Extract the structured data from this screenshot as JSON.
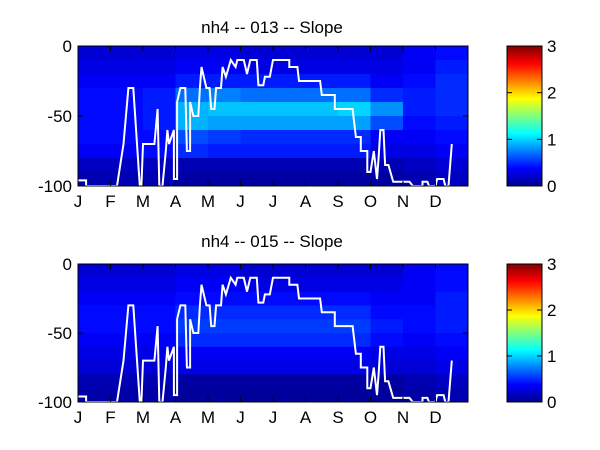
{
  "chart_data": [
    {
      "type": "heatmap",
      "title": "nh4 -- 013 -- Slope",
      "x_tick_labels": [
        "J",
        "F",
        "M",
        "A",
        "M",
        "J",
        "J",
        "A",
        "S",
        "O",
        "N",
        "D"
      ],
      "y_ticks": [
        0,
        -50,
        -100
      ],
      "ylim": [
        -100,
        0
      ],
      "colorbar": {
        "ticks": [
          0,
          1,
          2,
          3
        ],
        "range": [
          0,
          3
        ],
        "colormap": "jet"
      },
      "months": [
        1,
        2,
        3,
        4,
        5,
        6,
        7,
        8,
        9,
        10,
        11,
        12
      ],
      "depth_bands": [
        {
          "top": 0,
          "bottom": -10
        },
        {
          "top": -10,
          "bottom": -20
        },
        {
          "top": -20,
          "bottom": -30
        },
        {
          "top": -30,
          "bottom": -40
        },
        {
          "top": -40,
          "bottom": -50
        },
        {
          "top": -50,
          "bottom": -60
        },
        {
          "top": -60,
          "bottom": -70
        },
        {
          "top": -70,
          "bottom": -80
        },
        {
          "top": -80,
          "bottom": -90
        },
        {
          "top": -90,
          "bottom": -100
        }
      ],
      "values": [
        [
          0.25,
          0.25,
          0.25,
          0.3,
          0.3,
          0.25,
          0.25,
          0.25,
          0.25,
          0.25,
          0.35,
          0.4
        ],
        [
          0.3,
          0.3,
          0.3,
          0.35,
          0.35,
          0.3,
          0.3,
          0.3,
          0.3,
          0.3,
          0.35,
          0.45
        ],
        [
          0.35,
          0.35,
          0.35,
          0.45,
          0.45,
          0.45,
          0.45,
          0.45,
          0.45,
          0.35,
          0.4,
          0.5
        ],
        [
          0.4,
          0.4,
          0.45,
          0.7,
          0.75,
          0.7,
          0.7,
          0.7,
          0.7,
          0.5,
          0.45,
          0.5
        ],
        [
          0.4,
          0.4,
          0.45,
          0.9,
          0.95,
          0.95,
          0.95,
          0.95,
          1.0,
          0.8,
          0.45,
          0.5
        ],
        [
          0.4,
          0.4,
          0.45,
          0.9,
          0.85,
          0.85,
          0.85,
          0.85,
          0.85,
          0.6,
          0.4,
          0.45
        ],
        [
          0.4,
          0.4,
          0.4,
          0.6,
          0.55,
          0.5,
          0.5,
          0.5,
          0.5,
          0.35,
          0.35,
          0.4
        ],
        [
          0.35,
          0.35,
          0.4,
          0.5,
          0.45,
          0.45,
          0.45,
          0.45,
          0.45,
          0.3,
          0.3,
          0.35
        ],
        [
          0.2,
          0.2,
          0.2,
          0.15,
          0.15,
          0.15,
          0.15,
          0.15,
          0.15,
          0.15,
          0.2,
          0.25
        ],
        [
          0.15,
          0.15,
          0.15,
          0.1,
          0.1,
          0.1,
          0.1,
          0.1,
          0.1,
          0.1,
          0.15,
          0.2
        ]
      ],
      "line": {
        "color": "#ffffff",
        "points": [
          [
            1.0,
            -96
          ],
          [
            1.25,
            -96
          ],
          [
            1.25,
            -100
          ],
          [
            2.2,
            -100
          ],
          [
            2.4,
            -70
          ],
          [
            2.55,
            -30
          ],
          [
            2.7,
            -30
          ],
          [
            2.9,
            -100
          ],
          [
            2.95,
            -100
          ],
          [
            3.0,
            -70
          ],
          [
            3.35,
            -70
          ],
          [
            3.45,
            -45
          ],
          [
            3.5,
            -100
          ],
          [
            3.6,
            -100
          ],
          [
            3.7,
            -75
          ],
          [
            3.75,
            -60
          ],
          [
            3.8,
            -70
          ],
          [
            3.95,
            -60
          ],
          [
            3.95,
            -95
          ],
          [
            4.05,
            -95
          ],
          [
            4.05,
            -40
          ],
          [
            4.15,
            -30
          ],
          [
            4.3,
            -30
          ],
          [
            4.35,
            -75
          ],
          [
            4.45,
            -75
          ],
          [
            4.45,
            -40
          ],
          [
            4.55,
            -50
          ],
          [
            4.7,
            -50
          ],
          [
            4.75,
            -30
          ],
          [
            4.8,
            -15
          ],
          [
            4.95,
            -30
          ],
          [
            5.05,
            -30
          ],
          [
            5.1,
            -45
          ],
          [
            5.2,
            -45
          ],
          [
            5.25,
            -30
          ],
          [
            5.4,
            -30
          ],
          [
            5.45,
            -15
          ],
          [
            5.55,
            -22
          ],
          [
            5.7,
            -10
          ],
          [
            5.85,
            -15
          ],
          [
            5.9,
            -10
          ],
          [
            6.1,
            -10
          ],
          [
            6.2,
            -20
          ],
          [
            6.3,
            -10
          ],
          [
            6.5,
            -10
          ],
          [
            6.55,
            -28
          ],
          [
            6.7,
            -28
          ],
          [
            6.75,
            -22
          ],
          [
            6.9,
            -22
          ],
          [
            7.0,
            -10
          ],
          [
            7.5,
            -10
          ],
          [
            7.5,
            -15
          ],
          [
            7.75,
            -15
          ],
          [
            7.8,
            -25
          ],
          [
            8.45,
            -25
          ],
          [
            8.5,
            -35
          ],
          [
            8.9,
            -35
          ],
          [
            8.9,
            -45
          ],
          [
            9.45,
            -45
          ],
          [
            9.55,
            -65
          ],
          [
            9.7,
            -65
          ],
          [
            9.7,
            -75
          ],
          [
            9.9,
            -75
          ],
          [
            9.9,
            -90
          ],
          [
            10.0,
            -90
          ],
          [
            10.1,
            -75
          ],
          [
            10.2,
            -95
          ],
          [
            10.25,
            -80
          ],
          [
            10.3,
            -60
          ],
          [
            10.4,
            -60
          ],
          [
            10.45,
            -85
          ],
          [
            10.55,
            -85
          ],
          [
            10.7,
            -97
          ],
          [
            11.2,
            -97
          ],
          [
            11.3,
            -100
          ],
          [
            11.6,
            -100
          ],
          [
            11.6,
            -97
          ],
          [
            11.75,
            -97
          ],
          [
            11.8,
            -100
          ],
          [
            12.0,
            -100
          ],
          [
            12.05,
            -95
          ],
          [
            12.25,
            -95
          ],
          [
            12.3,
            -100
          ],
          [
            12.4,
            -100
          ],
          [
            12.5,
            -70
          ]
        ]
      }
    },
    {
      "type": "heatmap",
      "title": "nh4 -- 015 -- Slope",
      "x_tick_labels": [
        "J",
        "F",
        "M",
        "A",
        "M",
        "J",
        "J",
        "A",
        "S",
        "O",
        "N",
        "D"
      ],
      "y_ticks": [
        0,
        -50,
        -100
      ],
      "ylim": [
        -100,
        0
      ],
      "colorbar": {
        "ticks": [
          0,
          1,
          2,
          3
        ],
        "range": [
          0,
          3
        ],
        "colormap": "jet"
      },
      "months": [
        1,
        2,
        3,
        4,
        5,
        6,
        7,
        8,
        9,
        10,
        11,
        12
      ],
      "depth_bands": [
        {
          "top": 0,
          "bottom": -10
        },
        {
          "top": -10,
          "bottom": -20
        },
        {
          "top": -20,
          "bottom": -30
        },
        {
          "top": -30,
          "bottom": -40
        },
        {
          "top": -40,
          "bottom": -50
        },
        {
          "top": -50,
          "bottom": -60
        },
        {
          "top": -60,
          "bottom": -70
        },
        {
          "top": -70,
          "bottom": -80
        },
        {
          "top": -80,
          "bottom": -90
        },
        {
          "top": -90,
          "bottom": -100
        }
      ],
      "values": [
        [
          0.25,
          0.25,
          0.25,
          0.3,
          0.3,
          0.25,
          0.25,
          0.25,
          0.25,
          0.25,
          0.35,
          0.4
        ],
        [
          0.3,
          0.3,
          0.3,
          0.35,
          0.35,
          0.3,
          0.3,
          0.3,
          0.3,
          0.3,
          0.35,
          0.4
        ],
        [
          0.35,
          0.35,
          0.35,
          0.4,
          0.4,
          0.4,
          0.4,
          0.4,
          0.4,
          0.35,
          0.35,
          0.45
        ],
        [
          0.4,
          0.4,
          0.4,
          0.5,
          0.5,
          0.5,
          0.5,
          0.5,
          0.5,
          0.4,
          0.4,
          0.45
        ],
        [
          0.4,
          0.4,
          0.4,
          0.55,
          0.55,
          0.55,
          0.55,
          0.55,
          0.55,
          0.45,
          0.4,
          0.45
        ],
        [
          0.35,
          0.35,
          0.35,
          0.5,
          0.5,
          0.5,
          0.5,
          0.5,
          0.5,
          0.4,
          0.35,
          0.4
        ],
        [
          0.3,
          0.3,
          0.3,
          0.35,
          0.35,
          0.35,
          0.35,
          0.35,
          0.35,
          0.3,
          0.3,
          0.35
        ],
        [
          0.25,
          0.25,
          0.25,
          0.3,
          0.3,
          0.3,
          0.3,
          0.3,
          0.3,
          0.25,
          0.25,
          0.3
        ],
        [
          0.15,
          0.15,
          0.15,
          0.1,
          0.1,
          0.1,
          0.1,
          0.1,
          0.1,
          0.1,
          0.15,
          0.2
        ],
        [
          0.12,
          0.12,
          0.12,
          0.08,
          0.08,
          0.08,
          0.08,
          0.08,
          0.08,
          0.08,
          0.12,
          0.15
        ]
      ],
      "line": {
        "color": "#ffffff",
        "points": [
          [
            1.0,
            -96
          ],
          [
            1.25,
            -96
          ],
          [
            1.25,
            -100
          ],
          [
            2.2,
            -100
          ],
          [
            2.4,
            -70
          ],
          [
            2.55,
            -30
          ],
          [
            2.7,
            -30
          ],
          [
            2.9,
            -100
          ],
          [
            2.95,
            -100
          ],
          [
            3.0,
            -70
          ],
          [
            3.35,
            -70
          ],
          [
            3.45,
            -45
          ],
          [
            3.5,
            -100
          ],
          [
            3.6,
            -100
          ],
          [
            3.7,
            -75
          ],
          [
            3.75,
            -60
          ],
          [
            3.8,
            -70
          ],
          [
            3.95,
            -60
          ],
          [
            3.95,
            -95
          ],
          [
            4.05,
            -95
          ],
          [
            4.05,
            -40
          ],
          [
            4.15,
            -30
          ],
          [
            4.3,
            -30
          ],
          [
            4.35,
            -75
          ],
          [
            4.45,
            -75
          ],
          [
            4.45,
            -40
          ],
          [
            4.55,
            -50
          ],
          [
            4.7,
            -50
          ],
          [
            4.75,
            -30
          ],
          [
            4.8,
            -15
          ],
          [
            4.95,
            -30
          ],
          [
            5.05,
            -30
          ],
          [
            5.1,
            -45
          ],
          [
            5.2,
            -45
          ],
          [
            5.25,
            -30
          ],
          [
            5.4,
            -30
          ],
          [
            5.45,
            -15
          ],
          [
            5.55,
            -22
          ],
          [
            5.7,
            -10
          ],
          [
            5.85,
            -15
          ],
          [
            5.9,
            -10
          ],
          [
            6.1,
            -10
          ],
          [
            6.2,
            -20
          ],
          [
            6.3,
            -10
          ],
          [
            6.5,
            -10
          ],
          [
            6.55,
            -28
          ],
          [
            6.7,
            -28
          ],
          [
            6.75,
            -22
          ],
          [
            6.9,
            -22
          ],
          [
            7.0,
            -10
          ],
          [
            7.5,
            -10
          ],
          [
            7.5,
            -15
          ],
          [
            7.75,
            -15
          ],
          [
            7.8,
            -25
          ],
          [
            8.45,
            -25
          ],
          [
            8.5,
            -35
          ],
          [
            8.9,
            -35
          ],
          [
            8.9,
            -45
          ],
          [
            9.45,
            -45
          ],
          [
            9.55,
            -65
          ],
          [
            9.7,
            -65
          ],
          [
            9.7,
            -75
          ],
          [
            9.9,
            -75
          ],
          [
            9.9,
            -90
          ],
          [
            10.0,
            -90
          ],
          [
            10.1,
            -75
          ],
          [
            10.2,
            -95
          ],
          [
            10.25,
            -80
          ],
          [
            10.3,
            -60
          ],
          [
            10.4,
            -60
          ],
          [
            10.45,
            -85
          ],
          [
            10.55,
            -85
          ],
          [
            10.7,
            -97
          ],
          [
            11.2,
            -97
          ],
          [
            11.3,
            -100
          ],
          [
            11.6,
            -100
          ],
          [
            11.6,
            -97
          ],
          [
            11.75,
            -97
          ],
          [
            11.8,
            -100
          ],
          [
            12.0,
            -100
          ],
          [
            12.05,
            -95
          ],
          [
            12.25,
            -95
          ],
          [
            12.3,
            -100
          ],
          [
            12.4,
            -100
          ],
          [
            12.5,
            -70
          ]
        ]
      }
    }
  ]
}
